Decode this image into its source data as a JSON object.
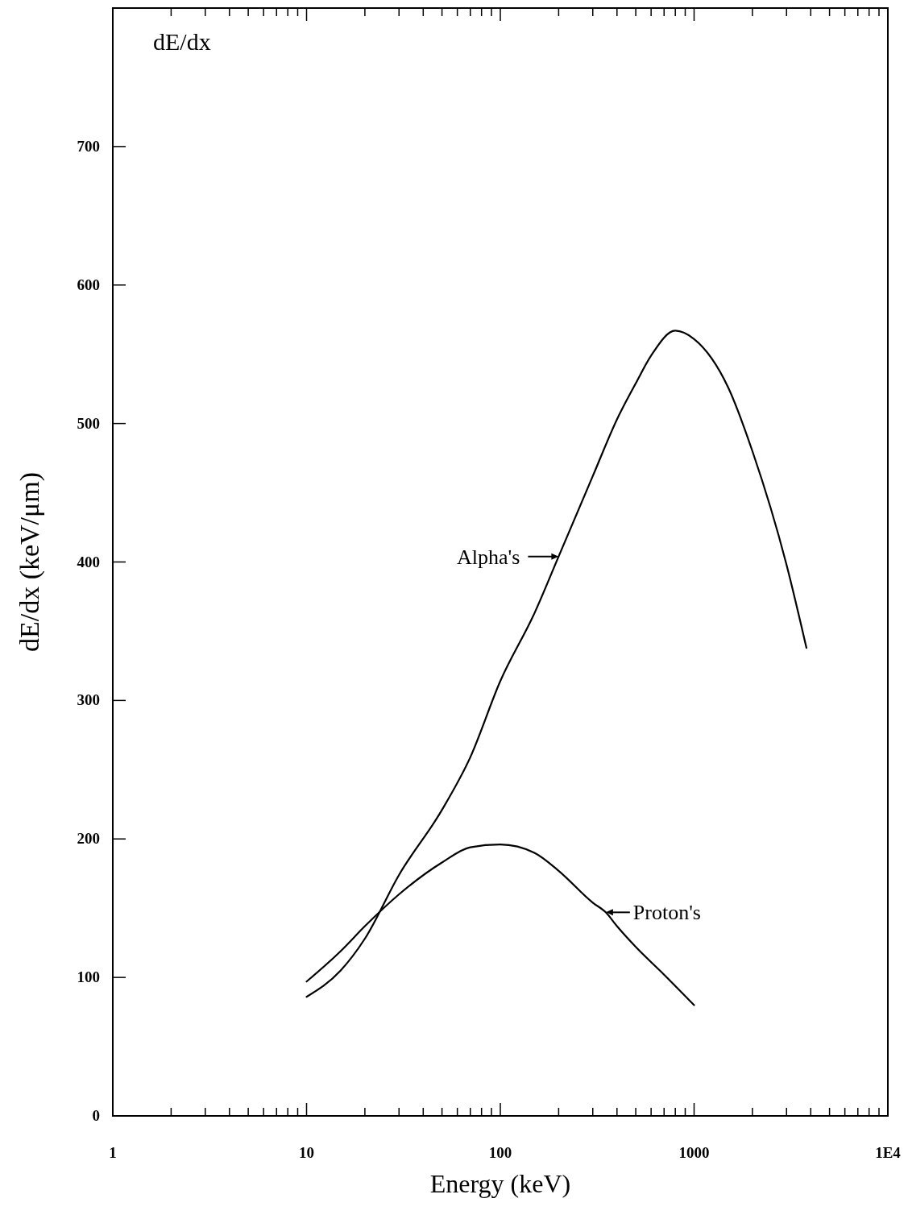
{
  "chart_data": {
    "type": "line",
    "title": "dE/dx",
    "xlabel": "Energy (keV)",
    "ylabel": "dE/dx (keV/μm)",
    "log": "x",
    "xlim": [
      1,
      10000
    ],
    "ylim": [
      0,
      800
    ],
    "xticks": [
      1,
      {
        "value": 2,
        "label": null
      },
      {
        "value": 3,
        "label": null
      },
      {
        "value": 4,
        "label": null
      },
      {
        "value": 5,
        "label": null
      },
      {
        "value": 6,
        "label": null
      },
      {
        "value": 7,
        "label": null
      },
      {
        "value": 8,
        "label": null
      },
      {
        "value": 9,
        "label": null
      },
      10,
      {
        "value": 20,
        "label": null
      },
      {
        "value": 30,
        "label": null
      },
      {
        "value": 40,
        "label": null
      },
      {
        "value": 50,
        "label": null
      },
      {
        "value": 60,
        "label": null
      },
      {
        "value": 70,
        "label": null
      },
      {
        "value": 80,
        "label": null
      },
      {
        "value": 90,
        "label": null
      },
      100,
      {
        "value": 200,
        "label": null
      },
      {
        "value": 300,
        "label": null
      },
      {
        "value": 400,
        "label": null
      },
      {
        "value": 500,
        "label": null
      },
      {
        "value": 600,
        "label": null
      },
      {
        "value": 700,
        "label": null
      },
      {
        "value": 800,
        "label": null
      },
      {
        "value": 900,
        "label": null
      },
      1000,
      {
        "value": 2000,
        "label": null
      },
      {
        "value": 3000,
        "label": null
      },
      {
        "value": 4000,
        "label": null
      },
      {
        "value": 5000,
        "label": null
      },
      {
        "value": 6000,
        "label": null
      },
      {
        "value": 7000,
        "label": null
      },
      {
        "value": 8000,
        "label": null
      },
      {
        "value": 9000,
        "label": null
      },
      {
        "value": 10000,
        "label": "1E4"
      }
    ],
    "yticks": [
      0,
      100,
      200,
      300,
      400,
      500,
      600,
      700
    ],
    "grid": false,
    "line_style": "solid",
    "series": [
      {
        "color": "#000000",
        "x": [
          10,
          15,
          20,
          30,
          50,
          70,
          100,
          150,
          200,
          300,
          400,
          500,
          600,
          800,
          1000,
          1500,
          2000,
          3000,
          3800
        ],
        "values": [
          86,
          105,
          128,
          174,
          221,
          259,
          314,
          363,
          404,
          462,
          503,
          529,
          549,
          567,
          561,
          526,
          480,
          398,
          338
        ]
      },
      {
        "color": "#000000",
        "x": [
          10,
          15,
          20,
          30,
          50,
          70,
          100,
          150,
          200,
          300,
          350,
          400,
          500,
          700,
          1000
        ],
        "values": [
          97,
          119,
          137,
          160,
          183,
          194,
          196,
          190,
          177,
          154,
          147,
          137,
          122,
          102,
          80
        ]
      }
    ],
    "annotations": [
      {
        "text": "Alpha's",
        "x": 200,
        "y": 404
      },
      {
        "text": "Proton's",
        "x": 350,
        "y": 147
      }
    ]
  }
}
